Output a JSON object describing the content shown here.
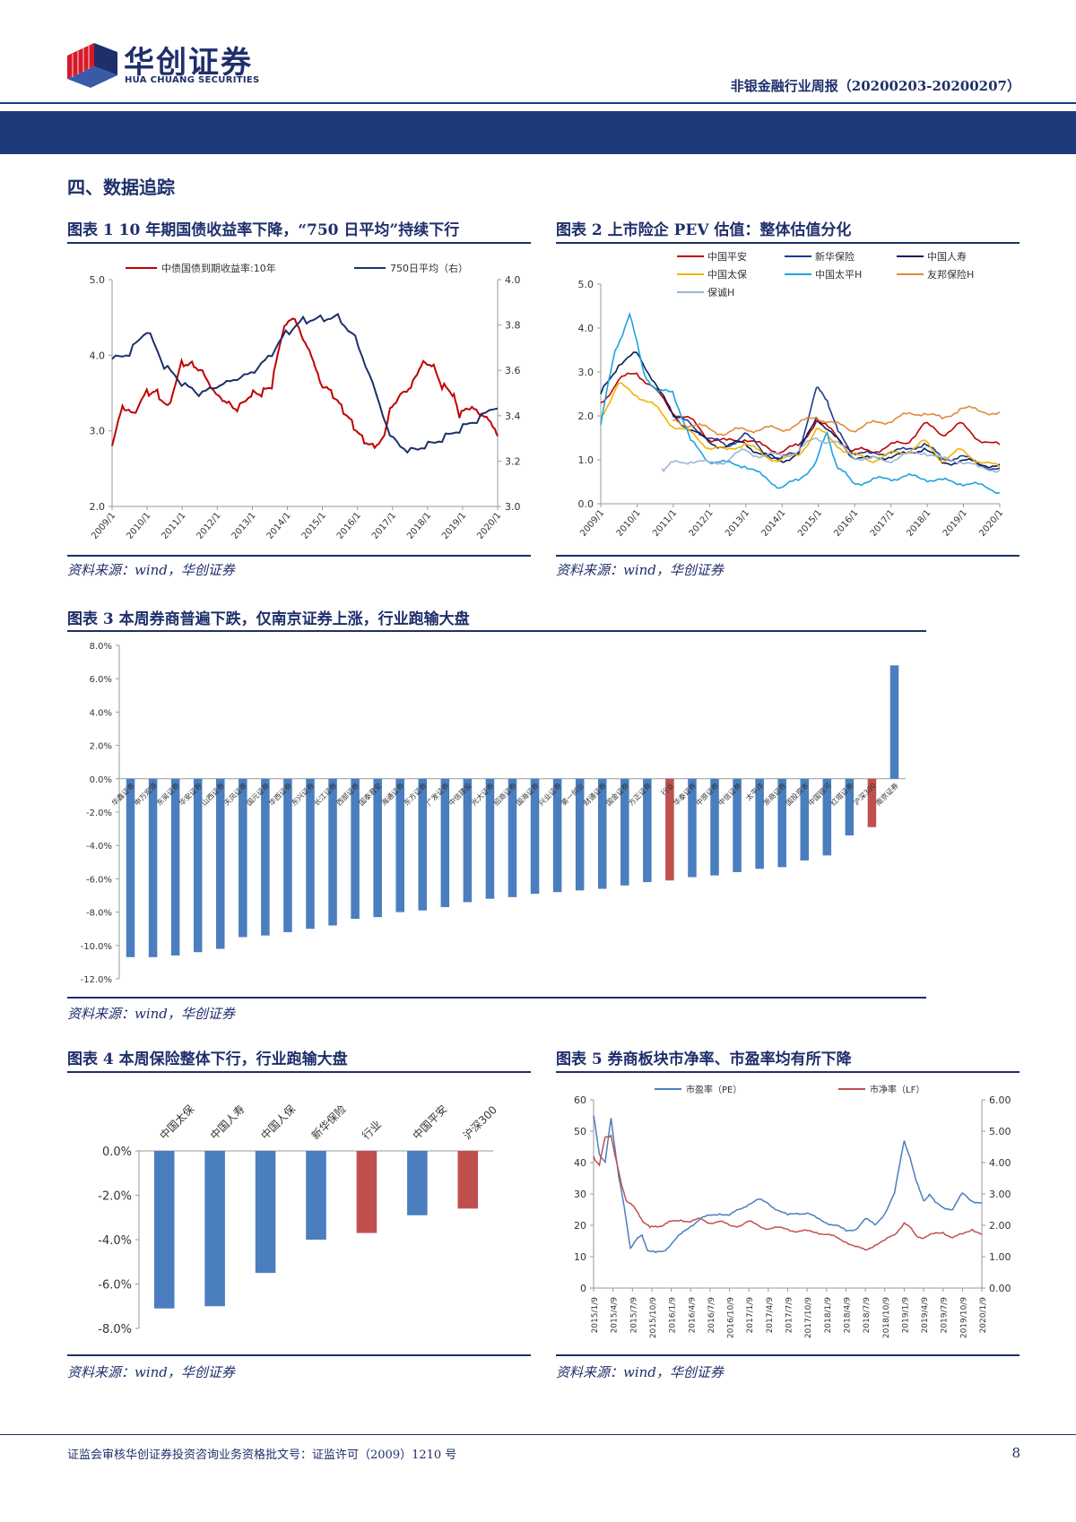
{
  "header": {
    "logo_cn": "华创证券",
    "logo_en": "HUA CHUANG SECURITIES",
    "report_title": "非银金融行业周报（20200203-20200207）"
  },
  "section_title": "四、数据追踪",
  "colors": {
    "navy": "#1d3b7a",
    "red": "#c00000",
    "blue": "#4a7ebf",
    "bar_red": "#c0504d"
  },
  "fig1": {
    "caption": "图表 1   10 年期国债收益率下降，“750 日平均”持续下行",
    "source": "资料来源：wind，华创证券",
    "chart_data": {
      "type": "line",
      "legend": [
        "中债国债到期收益率:10年",
        "750日平均（右）"
      ],
      "x_ticks": [
        "2009/1",
        "2010/1",
        "2011/1",
        "2012/1",
        "2013/1",
        "2014/1",
        "2015/1",
        "2016/1",
        "2017/1",
        "2018/1",
        "2019/1",
        "2020/1"
      ],
      "y_left": [
        "5.0",
        "4.0",
        "3.0",
        "2.0"
      ],
      "y_right": [
        "4.0",
        "3.8",
        "3.6",
        "3.4",
        "3.2",
        "3.0"
      ],
      "ylim_left": [
        2.0,
        5.0
      ],
      "ylim_right": [
        3.0,
        4.0
      ],
      "series": [
        {
          "color": "#c00000",
          "axis": "left",
          "x": [
            2009.0,
            2009.3,
            2009.6,
            2010.0,
            2010.3,
            2010.6,
            2011.0,
            2011.3,
            2011.6,
            2012.0,
            2012.3,
            2012.6,
            2013.0,
            2013.3,
            2013.6,
            2013.9,
            2014.2,
            2014.5,
            2014.8,
            2015.0,
            2015.3,
            2015.6,
            2015.9,
            2016.2,
            2016.5,
            2016.8,
            2017.0,
            2017.3,
            2017.6,
            2017.9,
            2018.2,
            2018.5,
            2018.8,
            2019.0,
            2019.3,
            2019.6,
            2019.9,
            2020.1
          ],
          "y": [
            2.8,
            3.3,
            3.2,
            3.5,
            3.5,
            3.3,
            3.9,
            3.9,
            3.8,
            3.5,
            3.4,
            3.3,
            3.5,
            3.5,
            3.6,
            4.3,
            4.5,
            4.2,
            3.9,
            3.6,
            3.5,
            3.3,
            3.1,
            2.9,
            2.8,
            2.9,
            3.3,
            3.5,
            3.6,
            3.9,
            3.9,
            3.6,
            3.5,
            3.2,
            3.3,
            3.2,
            3.1,
            2.9
          ]
        },
        {
          "color": "#1f2f6b",
          "axis": "right",
          "x": [
            2009.0,
            2009.5,
            2010.0,
            2010.5,
            2011.0,
            2011.5,
            2012.0,
            2012.5,
            2013.0,
            2013.5,
            2014.0,
            2014.5,
            2015.0,
            2015.5,
            2016.0,
            2016.5,
            2017.0,
            2017.5,
            2018.0,
            2018.5,
            2019.0,
            2019.5,
            2020.1
          ],
          "y": [
            3.65,
            3.68,
            3.78,
            3.62,
            3.54,
            3.49,
            3.52,
            3.55,
            3.58,
            3.65,
            3.76,
            3.82,
            3.83,
            3.84,
            3.75,
            3.55,
            3.32,
            3.25,
            3.27,
            3.3,
            3.34,
            3.38,
            3.44
          ]
        }
      ]
    }
  },
  "fig2": {
    "caption": "图表 2   上市险企 PEV 估值：整体估值分化",
    "source": "资料来源：wind，华创证券",
    "chart_data": {
      "type": "line",
      "legend": [
        "中国平安",
        "新华保险",
        "中国人寿",
        "中国太保",
        "中国太平H",
        "友邦保险H",
        "保诚H"
      ],
      "x_ticks": [
        "2009/1",
        "2010/1",
        "2011/1",
        "2012/1",
        "2013/1",
        "2014/1",
        "2015/1",
        "2016/1",
        "2017/1",
        "2018/1",
        "2019/1",
        "2020/1"
      ],
      "y_ticks": [
        "5.0",
        "4.0",
        "3.0",
        "2.0",
        "1.0",
        "0.0"
      ],
      "ylim": [
        0,
        5
      ],
      "series": [
        {
          "name": "中国平安",
          "color": "#c00000",
          "x": [
            2009.0,
            2009.5,
            2010.0,
            2010.5,
            2011.0,
            2011.5,
            2012.0,
            2012.5,
            2013.0,
            2013.5,
            2014.0,
            2014.5,
            2015.0,
            2015.5,
            2016.0,
            2016.5,
            2017.0,
            2017.5,
            2018.0,
            2018.5,
            2019.0,
            2019.5,
            2020.1
          ],
          "y": [
            2.3,
            2.8,
            3.0,
            2.6,
            2.1,
            1.9,
            1.5,
            1.4,
            1.5,
            1.3,
            1.2,
            1.3,
            1.9,
            1.6,
            1.2,
            1.2,
            1.3,
            1.4,
            1.8,
            1.6,
            1.8,
            1.5,
            1.3
          ]
        },
        {
          "name": "新华保险",
          "color": "#1f3a8a",
          "x": [
            2011.0,
            2011.5,
            2012.0,
            2012.5,
            2013.0,
            2013.5,
            2014.0,
            2014.5,
            2015.0,
            2015.3,
            2015.6,
            2016.0,
            2016.5,
            2017.0,
            2017.5,
            2018.0,
            2018.5,
            2019.0,
            2019.5,
            2020.1
          ],
          "y": [
            2.0,
            1.8,
            1.5,
            1.3,
            1.6,
            1.2,
            1.0,
            1.2,
            2.6,
            2.4,
            1.6,
            1.2,
            1.1,
            1.2,
            1.2,
            1.4,
            1.0,
            1.1,
            0.9,
            0.8
          ]
        },
        {
          "name": "中国人寿",
          "color": "#0b1f5c",
          "x": [
            2009.0,
            2009.5,
            2010.0,
            2010.5,
            2011.0,
            2011.5,
            2012.0,
            2012.5,
            2013.0,
            2013.5,
            2014.0,
            2014.5,
            2015.0,
            2015.5,
            2016.0,
            2016.5,
            2017.0,
            2017.5,
            2018.0,
            2018.5,
            2019.0,
            2019.5,
            2020.1
          ],
          "y": [
            2.5,
            3.2,
            3.4,
            2.8,
            2.0,
            1.7,
            1.4,
            1.3,
            1.4,
            1.1,
            1.0,
            1.1,
            2.0,
            1.5,
            1.1,
            1.0,
            1.1,
            1.1,
            1.3,
            0.9,
            1.0,
            0.9,
            0.9
          ]
        },
        {
          "name": "中国太保",
          "color": "#f0b400",
          "x": [
            2009.0,
            2009.5,
            2010.0,
            2010.5,
            2011.0,
            2011.5,
            2012.0,
            2012.5,
            2013.0,
            2013.5,
            2014.0,
            2014.5,
            2015.0,
            2015.5,
            2016.0,
            2016.5,
            2017.0,
            2017.5,
            2018.0,
            2018.5,
            2019.0,
            2019.5,
            2020.1
          ],
          "y": [
            2.0,
            2.7,
            2.5,
            2.2,
            1.8,
            1.6,
            1.3,
            1.2,
            1.4,
            1.1,
            1.0,
            1.1,
            1.7,
            1.4,
            1.1,
            1.0,
            1.1,
            1.2,
            1.4,
            1.0,
            1.2,
            1.0,
            0.8
          ]
        },
        {
          "name": "中国太平H",
          "color": "#1aa3e0",
          "x": [
            2009.0,
            2009.4,
            2009.8,
            2010.2,
            2010.6,
            2011.0,
            2011.5,
            2012.0,
            2012.5,
            2013.0,
            2013.5,
            2014.0,
            2014.5,
            2015.0,
            2015.3,
            2015.6,
            2016.0,
            2016.5,
            2017.0,
            2017.5,
            2018.0,
            2018.5,
            2019.0,
            2019.5,
            2020.1
          ],
          "y": [
            1.8,
            3.5,
            4.3,
            3.0,
            2.5,
            2.6,
            1.4,
            1.0,
            0.9,
            0.9,
            0.6,
            0.4,
            0.5,
            1.0,
            1.6,
            0.8,
            0.5,
            0.5,
            0.6,
            0.6,
            0.6,
            0.5,
            0.5,
            0.4,
            0.3
          ]
        },
        {
          "name": "友邦保险H",
          "color": "#e08a3c",
          "x": [
            2011.0,
            2011.5,
            2012.0,
            2012.5,
            2013.0,
            2013.5,
            2014.0,
            2014.5,
            2015.0,
            2015.5,
            2016.0,
            2016.5,
            2017.0,
            2017.5,
            2018.0,
            2018.5,
            2019.0,
            2019.5,
            2020.1
          ],
          "y": [
            1.9,
            1.8,
            1.7,
            1.6,
            1.7,
            1.7,
            1.7,
            1.8,
            2.0,
            1.8,
            1.7,
            1.8,
            1.9,
            2.0,
            2.1,
            1.9,
            2.2,
            2.1,
            2.1
          ]
        },
        {
          "name": "保诚H",
          "color": "#9db4d8",
          "x": [
            2010.7,
            2011.0,
            2011.5,
            2012.0,
            2012.5,
            2013.0,
            2013.5,
            2014.0,
            2014.5,
            2015.0,
            2015.5,
            2016.0,
            2016.5,
            2017.0,
            2017.5,
            2018.0,
            2018.5,
            2019.0,
            2019.5,
            2020.1
          ],
          "y": [
            0.8,
            0.9,
            1.0,
            0.9,
            1.0,
            1.2,
            1.1,
            1.1,
            1.2,
            1.5,
            1.4,
            1.1,
            1.0,
            1.0,
            1.1,
            1.2,
            1.0,
            1.0,
            0.8,
            0.8
          ]
        }
      ]
    }
  },
  "fig3": {
    "caption": "图表 3   本周券商普遍下跌，仅南京证券上涨，行业跑输大盘",
    "source": "资料来源：wind，华创证券",
    "chart_data": {
      "type": "bar",
      "y_ticks": [
        "8.0%",
        "6.0%",
        "4.0%",
        "2.0%",
        "0.0%",
        "-2.0%",
        "-4.0%",
        "-6.0%",
        "-8.0%",
        "-10.0%",
        "-12.0%"
      ],
      "ylim": [
        -12,
        8
      ],
      "categories": [
        "华鑫证券",
        "申万宏源",
        "东吴证券",
        "华安证券",
        "山西证券",
        "天风证券",
        "国元证券",
        "华西证券",
        "东兴证券",
        "长江证券",
        "西部证券",
        "国泰君安",
        "海通证券",
        "东方证券",
        "广发证券",
        "中信建投",
        "光大证券",
        "招商证券",
        "国海证券",
        "兴业证券",
        "第一创业",
        "财通证券",
        "国金证券",
        "方正证券",
        "行业",
        "华泰证券",
        "中原证券",
        "中信证券",
        "太平洋",
        "浙商证券",
        "国投资本",
        "中国银河",
        "红塔证券",
        "沪深300",
        "南京证券"
      ],
      "values": [
        -10.7,
        -10.7,
        -10.6,
        -10.4,
        -10.2,
        -9.5,
        -9.4,
        -9.2,
        -9.0,
        -8.8,
        -8.4,
        -8.3,
        -8.0,
        -7.9,
        -7.7,
        -7.4,
        -7.2,
        -7.1,
        -6.9,
        -6.8,
        -6.7,
        -6.6,
        -6.4,
        -6.2,
        -6.1,
        -5.9,
        -5.8,
        -5.6,
        -5.4,
        -5.3,
        -4.9,
        -4.6,
        -3.4,
        -2.9,
        6.8
      ],
      "highlight": [
        "行业",
        "沪深300"
      ]
    }
  },
  "fig4": {
    "caption": "图表 4   本周保险整体下行，行业跑输大盘",
    "source": "资料来源：wind，华创证券",
    "chart_data": {
      "type": "bar",
      "y_ticks": [
        "0.0%",
        "-2.0%",
        "-4.0%",
        "-6.0%",
        "-8.0%"
      ],
      "ylim": [
        -8,
        0
      ],
      "categories": [
        "中国太保",
        "中国人寿",
        "中国人保",
        "新华保险",
        "行业",
        "中国平安",
        "沪深300"
      ],
      "values": [
        -7.1,
        -7.0,
        -5.5,
        -4.0,
        -3.7,
        -2.9,
        -2.6
      ],
      "highlight": [
        "行业",
        "沪深300"
      ]
    }
  },
  "fig5": {
    "caption": "图表 5   券商板块市净率、市盈率均有所下降",
    "source": "资料来源：wind，华创证券",
    "chart_data": {
      "type": "line",
      "legend": [
        "市盈率（PE）",
        "市净率（LF）"
      ],
      "x_ticks": [
        "2015/1/9",
        "2015/4/9",
        "2015/7/9",
        "2015/10/9",
        "2016/1/9",
        "2016/4/9",
        "2016/7/9",
        "2016/10/9",
        "2017/1/9",
        "2017/4/9",
        "2017/7/9",
        "2017/10/9",
        "2018/1/9",
        "2018/4/9",
        "2018/7/9",
        "2018/10/9",
        "2019/1/9",
        "2019/4/9",
        "2019/7/9",
        "2019/10/9",
        "2020/1/9"
      ],
      "y_left": [
        "60",
        "50",
        "40",
        "30",
        "20",
        "10",
        "0"
      ],
      "y_right": [
        "6.00",
        "5.00",
        "4.00",
        "3.00",
        "2.00",
        "1.00",
        "0.00"
      ],
      "ylim_left": [
        0,
        60
      ],
      "ylim_right": [
        0,
        6
      ],
      "series": [
        {
          "name": "市盈率（PE）",
          "color": "#4a7ebf",
          "axis": "left",
          "x": [
            0,
            0.3,
            0.6,
            0.9,
            1.1,
            1.3,
            1.6,
            1.9,
            2.2,
            2.5,
            2.8,
            3.2,
            3.6,
            4.0,
            4.5,
            5.0,
            5.5,
            6.0,
            6.5,
            7.0,
            7.5,
            8.0,
            8.5,
            9.0,
            9.5,
            10.0,
            10.5,
            11.0,
            11.5,
            12.0,
            12.5,
            13.0,
            13.5,
            14.0,
            14.5,
            15.0,
            15.5,
            16.0,
            16.3,
            16.6,
            17.0,
            17.3,
            17.6,
            18.0,
            18.5,
            19.0,
            19.5,
            20.0
          ],
          "y": [
            55,
            43,
            40,
            54,
            45,
            35,
            25,
            13,
            15,
            17,
            12,
            11,
            12,
            14,
            17,
            20,
            22,
            23,
            24,
            23,
            25,
            27,
            28,
            27,
            25,
            23,
            24,
            24,
            22,
            21,
            20,
            18,
            19,
            22,
            20,
            24,
            30,
            47,
            42,
            34,
            28,
            30,
            27,
            26,
            25,
            30,
            28,
            27
          ]
        },
        {
          "name": "市净率（LF）",
          "color": "#c0504d",
          "axis": "right",
          "x": [
            0,
            0.3,
            0.6,
            0.9,
            1.1,
            1.4,
            1.7,
            2.0,
            2.3,
            2.6,
            2.9,
            3.2,
            3.6,
            4.0,
            4.5,
            5.0,
            5.5,
            6.0,
            6.5,
            7.0,
            7.5,
            8.0,
            8.5,
            9.0,
            9.5,
            10.0,
            10.5,
            11.0,
            11.5,
            12.0,
            12.5,
            13.0,
            13.5,
            14.0,
            14.5,
            15.0,
            15.5,
            16.0,
            16.3,
            16.6,
            17.0,
            17.5,
            18.0,
            18.5,
            19.0,
            19.5,
            20.0
          ],
          "y": [
            4.2,
            3.9,
            4.8,
            4.9,
            4.2,
            3.4,
            2.8,
            2.6,
            2.4,
            2.1,
            1.9,
            2.0,
            2.0,
            2.1,
            2.2,
            2.1,
            2.2,
            2.1,
            2.1,
            2.0,
            2.0,
            2.1,
            2.0,
            1.9,
            1.9,
            1.9,
            1.8,
            1.8,
            1.8,
            1.7,
            1.6,
            1.5,
            1.3,
            1.2,
            1.4,
            1.5,
            1.7,
            2.1,
            1.9,
            1.7,
            1.6,
            1.7,
            1.8,
            1.6,
            1.7,
            1.9,
            1.7
          ]
        }
      ]
    }
  },
  "footer": {
    "license": "证监会审核华创证券投资咨询业务资格批文号：证监许可（2009）1210 号",
    "page": "8"
  }
}
